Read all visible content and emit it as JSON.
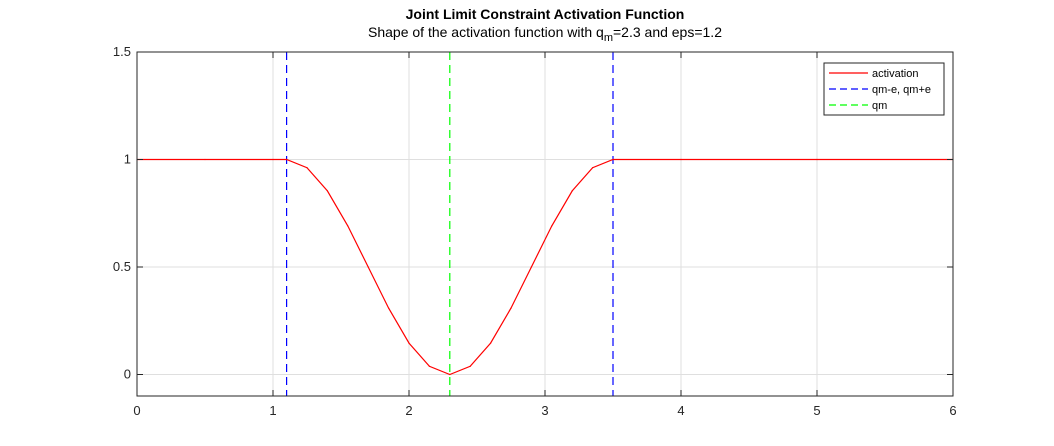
{
  "chart_data": {
    "type": "line",
    "title": "Joint Limit Constraint Activation Function",
    "subtitle": {
      "before": "Shape of the activation function with q",
      "sub": "m",
      "after": "=2.3 and eps=1.2"
    },
    "xlabel": "",
    "ylabel": "",
    "xlim": [
      0,
      6
    ],
    "ylim": [
      -0.1,
      1.5
    ],
    "xticks": [
      0,
      1,
      2,
      3,
      4,
      5,
      6
    ],
    "xtick_labels": [
      "0",
      "1",
      "2",
      "3",
      "4",
      "5",
      "6"
    ],
    "yticks": [
      0,
      0.5,
      1,
      1.5
    ],
    "ytick_labels": [
      "0",
      "0.5",
      "1",
      "1.5"
    ],
    "grid": true,
    "legend_position": "top-right",
    "qm": 2.3,
    "eps": 1.2,
    "series": [
      {
        "name": "activation",
        "color": "#ff0000",
        "style": "solid",
        "x": [
          0,
          0.5,
          1.0,
          1.1,
          1.25,
          1.4,
          1.55,
          1.7,
          1.85,
          2.0,
          2.15,
          2.3,
          2.45,
          2.6,
          2.75,
          2.9,
          3.05,
          3.2,
          3.35,
          3.5,
          4.0,
          5.0,
          6.0
        ],
        "y": [
          1,
          1,
          1,
          1,
          0.962,
          0.854,
          0.691,
          0.5,
          0.309,
          0.146,
          0.038,
          0,
          0.038,
          0.146,
          0.309,
          0.5,
          0.691,
          0.854,
          0.962,
          1,
          1,
          1,
          1
        ]
      },
      {
        "name": "qm-e, qm+e",
        "color": "#0000ff",
        "style": "dashed",
        "vlines": [
          1.1,
          3.5
        ]
      },
      {
        "name": "qm",
        "color": "#00ff00",
        "style": "dashed",
        "vlines": [
          2.3
        ]
      }
    ]
  }
}
